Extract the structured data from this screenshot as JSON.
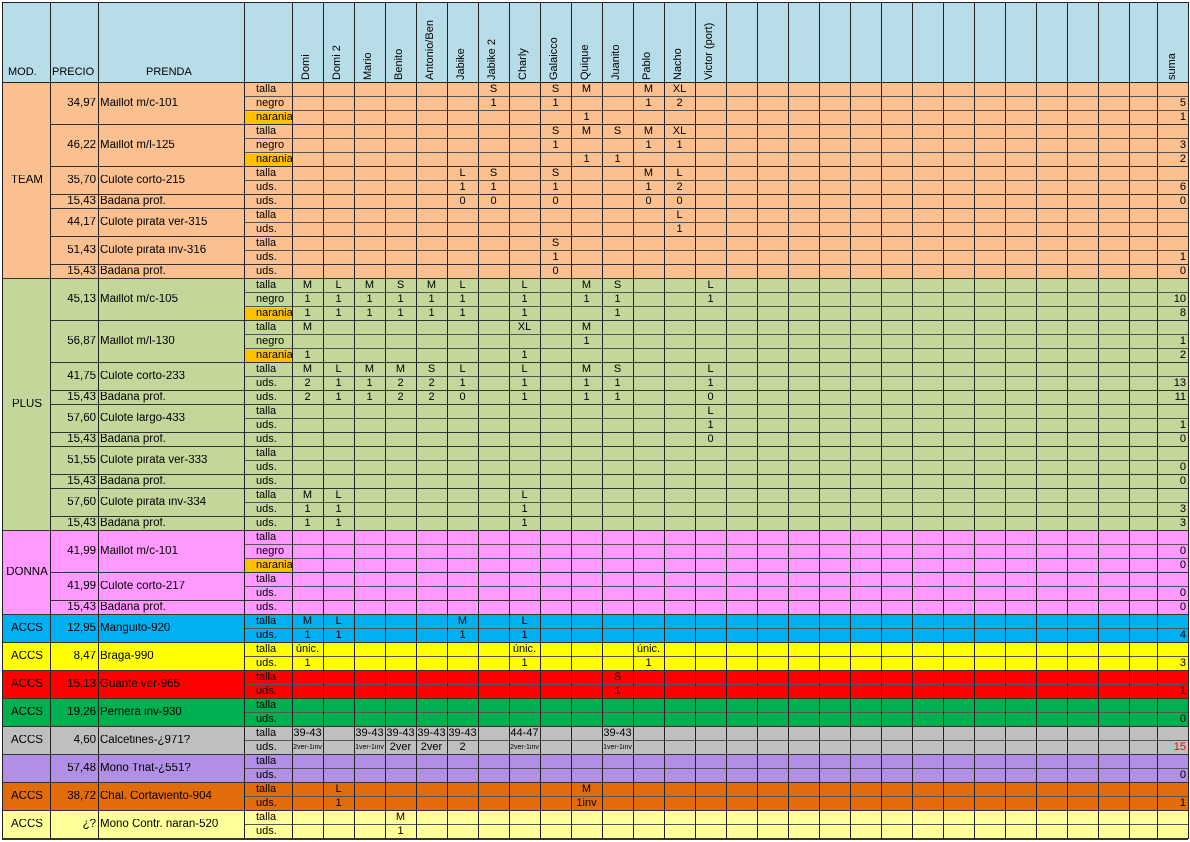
{
  "headers": {
    "mod": "MOD.",
    "precio": "PRECIO",
    "prenda": "PRENDA",
    "suma": "suma"
  },
  "people": [
    "Domi",
    "Domi 2",
    "Mario",
    "Benito",
    "Antonio/Ben",
    "Jabike",
    "Jabike 2",
    "Charly",
    "Galaicco",
    "Quique",
    "Juanito",
    "Pablo",
    "Nacho",
    "Victor (port)"
  ],
  "sections": [
    {
      "name": "TEAM",
      "color": "#fac090",
      "items": [
        {
          "price": "34,97",
          "name": "Maillot m/c-101",
          "rows": [
            {
              "label": "talla",
              "vals": {
                "6": "S",
                "8": "S",
                "9": "M",
                "11": "M",
                "12": "XL"
              },
              "sum": ""
            },
            {
              "label": "negro",
              "vals": {
                "6": "1",
                "8": "1",
                "11": "1",
                "12": "2"
              },
              "sum": "5"
            },
            {
              "label": "narania",
              "hl": true,
              "vals": {
                "9": "1"
              },
              "sum": "1"
            }
          ]
        },
        {
          "price": "46,22",
          "name": "Maillot m/l-125",
          "rows": [
            {
              "label": "talla",
              "vals": {
                "8": "S",
                "9": "M",
                "10": "S",
                "11": "M",
                "12": "XL"
              },
              "sum": ""
            },
            {
              "label": "negro",
              "vals": {
                "8": "1",
                "11": "1",
                "12": "1"
              },
              "sum": "3"
            },
            {
              "label": "narania",
              "hl": true,
              "vals": {
                "9": "1",
                "10": "1"
              },
              "sum": "2"
            }
          ]
        },
        {
          "price": "35,70",
          "name": "Culote corto-215",
          "rows": [
            {
              "label": "talla",
              "vals": {
                "5": "L",
                "6": "S",
                "8": "S",
                "11": "M",
                "12": "L"
              },
              "sum": ""
            },
            {
              "label": "uds.",
              "vals": {
                "5": "1",
                "6": "1",
                "8": "1",
                "11": "1",
                "12": "2"
              },
              "sum": "6"
            }
          ]
        },
        {
          "price": "15,43",
          "name": "Badana prof.",
          "rows": [
            {
              "label": "uds.",
              "vals": {
                "5": "0",
                "6": "0",
                "8": "0",
                "11": "0",
                "12": "0"
              },
              "sum": "0"
            }
          ]
        },
        {
          "price": "44,17",
          "name": "Culote pirata ver-315",
          "rows": [
            {
              "label": "talla",
              "vals": {
                "12": "L"
              },
              "sum": ""
            },
            {
              "label": "uds.",
              "vals": {
                "12": "1"
              },
              "sum": ""
            }
          ]
        },
        {
          "price": "51,43",
          "name": "Culote pirata inv-316",
          "rows": [
            {
              "label": "talla",
              "vals": {
                "8": "S"
              },
              "sum": ""
            },
            {
              "label": "uds.",
              "vals": {
                "8": "1"
              },
              "sum": "1"
            }
          ]
        },
        {
          "price": "15,43",
          "name": "Badana prof.",
          "rows": [
            {
              "label": "uds.",
              "vals": {
                "8": "0"
              },
              "sum": "0"
            }
          ]
        }
      ]
    },
    {
      "name": "PLUS",
      "color": "#c4d79b",
      "items": [
        {
          "price": "45,13",
          "name": "Maillot m/c-105",
          "rows": [
            {
              "label": "talla",
              "vals": {
                "0": "M",
                "1": "L",
                "2": "M",
                "3": "S",
                "4": "M",
                "5": "L",
                "7": "L",
                "9": "M",
                "10": "S",
                "13": "L"
              },
              "sum": ""
            },
            {
              "label": "negro",
              "vals": {
                "0": "1",
                "1": "1",
                "2": "1",
                "3": "1",
                "4": "1",
                "5": "1",
                "7": "1",
                "9": "1",
                "10": "1",
                "13": "1"
              },
              "sum": "10"
            },
            {
              "label": "narania",
              "hl": true,
              "vals": {
                "0": "1",
                "1": "1",
                "2": "1",
                "3": "1",
                "4": "1",
                "5": "1",
                "7": "1",
                "10": "1"
              },
              "sum": "8"
            }
          ]
        },
        {
          "price": "56,87",
          "name": "Maillot m/l-130",
          "rows": [
            {
              "label": "talla",
              "vals": {
                "0": "M",
                "7": "XL",
                "9": "M"
              },
              "sum": ""
            },
            {
              "label": "negro",
              "vals": {
                "9": "1"
              },
              "sum": "1"
            },
            {
              "label": "narania",
              "hl": true,
              "vals": {
                "0": "1",
                "7": "1"
              },
              "sum": "2"
            }
          ]
        },
        {
          "price": "41,75",
          "name": "Culote corto-233",
          "rows": [
            {
              "label": "talla",
              "vals": {
                "0": "M",
                "1": "L",
                "2": "M",
                "3": "M",
                "4": "S",
                "5": "L",
                "7": "L",
                "9": "M",
                "10": "S",
                "13": "L"
              },
              "sum": ""
            },
            {
              "label": "uds.",
              "vals": {
                "0": "2",
                "1": "1",
                "2": "1",
                "3": "2",
                "4": "2",
                "5": "1",
                "7": "1",
                "9": "1",
                "10": "1",
                "13": "1"
              },
              "sum": "13"
            }
          ]
        },
        {
          "price": "15,43",
          "name": "Badana prof.",
          "rows": [
            {
              "label": "uds.",
              "vals": {
                "0": "2",
                "1": "1",
                "2": "1",
                "3": "2",
                "4": "2",
                "5": "0",
                "7": "1",
                "9": "1",
                "10": "1",
                "13": "0"
              },
              "sum": "11"
            }
          ]
        },
        {
          "price": "57,60",
          "name": "Culote largo-433",
          "rows": [
            {
              "label": "talla",
              "vals": {
                "13": "L"
              },
              "sum": ""
            },
            {
              "label": "uds.",
              "vals": {
                "13": "1"
              },
              "sum": "1"
            }
          ]
        },
        {
          "price": "15,43",
          "name": "Badana prof.",
          "rows": [
            {
              "label": "uds.",
              "vals": {
                "13": "0"
              },
              "sum": "0"
            }
          ]
        },
        {
          "price": "51,55",
          "name": "Culote pirata ver-333",
          "rows": [
            {
              "label": "talla",
              "vals": {},
              "sum": ""
            },
            {
              "label": "uds.",
              "vals": {},
              "sum": "0"
            }
          ]
        },
        {
          "price": "15,43",
          "name": "Badana prof.",
          "rows": [
            {
              "label": "uds.",
              "vals": {},
              "sum": "0"
            }
          ]
        },
        {
          "price": "57,60",
          "name": "Culote pirata inv-334",
          "rows": [
            {
              "label": "talla",
              "vals": {
                "0": "M",
                "1": "L",
                "7": "L"
              },
              "sum": ""
            },
            {
              "label": "uds.",
              "vals": {
                "0": "1",
                "1": "1",
                "7": "1"
              },
              "sum": "3"
            }
          ]
        },
        {
          "price": "15,43",
          "name": "Badana prof.",
          "rows": [
            {
              "label": "uds.",
              "vals": {
                "0": "1",
                "1": "1",
                "7": "1"
              },
              "sum": "3"
            }
          ]
        }
      ]
    },
    {
      "name": "DONNA",
      "color": "#ff99ff",
      "items": [
        {
          "price": "41,99",
          "name": "Maillot m/c-101",
          "rows": [
            {
              "label": "talla",
              "vals": {},
              "sum": ""
            },
            {
              "label": "negro",
              "vals": {},
              "sum": "0"
            },
            {
              "label": "narania",
              "hl": true,
              "vals": {},
              "sum": "0"
            }
          ]
        },
        {
          "price": "41,99",
          "name": "Culote corto-217",
          "rows": [
            {
              "label": "talla",
              "vals": {},
              "sum": ""
            },
            {
              "label": "uds.",
              "vals": {},
              "sum": "0"
            }
          ]
        },
        {
          "price": "15,43",
          "name": "Badana prof.",
          "rows": [
            {
              "label": "uds.",
              "vals": {},
              "sum": "0"
            }
          ]
        }
      ]
    },
    {
      "name": "ACCS",
      "color": "#00b0f0",
      "items": [
        {
          "price": "12,95",
          "name": "Manguito-920",
          "rows": [
            {
              "label": "talla",
              "vals": {
                "0": "M",
                "1": "L",
                "5": "M",
                "7": "L"
              },
              "sum": ""
            },
            {
              "label": "uds.",
              "vals": {
                "0": "1",
                "1": "1",
                "5": "1",
                "7": "1"
              },
              "sum": "4"
            }
          ]
        }
      ]
    },
    {
      "name": "ACCS",
      "color": "#ffff00",
      "items": [
        {
          "price": "8,47",
          "name": "Braga-990",
          "rows": [
            {
              "label": "talla",
              "vals": {
                "0": "únic.",
                "7": "únic.",
                "11": "únic."
              },
              "sum": ""
            },
            {
              "label": "uds.",
              "vals": {
                "0": "1",
                "7": "1",
                "11": "1"
              },
              "sum": "3"
            }
          ]
        }
      ]
    },
    {
      "name": "ACCS",
      "color": "#ff0000",
      "items": [
        {
          "price": "15,13",
          "name": "Guante ver-965",
          "rows": [
            {
              "label": "talla",
              "vals": {
                "10": "S"
              },
              "sum": ""
            },
            {
              "label": "uds.",
              "vals": {
                "10": "1"
              },
              "sum": "1"
            }
          ]
        }
      ]
    },
    {
      "name": "ACCS",
      "color": "#00b050",
      "items": [
        {
          "price": "19,26",
          "name": "Pernera inv-930",
          "rows": [
            {
              "label": "talla",
              "vals": {},
              "sum": ""
            },
            {
              "label": "uds.",
              "vals": {},
              "sum": "0"
            }
          ]
        }
      ]
    },
    {
      "name": "ACCS",
      "color": "#bfbfbf",
      "items": [
        {
          "price": "4,60",
          "name": "Calcetines-¿971?",
          "rows": [
            {
              "label": "talla",
              "vals": {
                "0": "39-43",
                "2": "39-43",
                "3": "39-43",
                "4": "39-43",
                "5": "39-43",
                "7": "44-47",
                "10": "39-43"
              },
              "sum": ""
            },
            {
              "label": "uds.",
              "vals": {
                "0": "2ver-1inv",
                "2": "1ver-1inv",
                "3": "2ver",
                "4": "2ver",
                "5": "2",
                "7": "2ver-1inv",
                "10": "1ver-1inv"
              },
              "sum": "15",
              "sumRed": true
            }
          ]
        }
      ]
    },
    {
      "name": "",
      "color": "#b18fe6",
      "items": [
        {
          "price": "57,48",
          "name": "Mono Triat-¿551?",
          "rows": [
            {
              "label": "talla",
              "vals": {},
              "sum": ""
            },
            {
              "label": "uds.",
              "vals": {},
              "sum": "0"
            }
          ]
        }
      ]
    },
    {
      "name": "ACCS",
      "color": "#e36c0a",
      "items": [
        {
          "price": "38,72",
          "name": "Chal. Cortaviento-904",
          "rows": [
            {
              "label": "talla",
              "vals": {
                "1": "L",
                "9": "M"
              },
              "sum": ""
            },
            {
              "label": "uds.",
              "vals": {
                "1": "1",
                "9": "1inv"
              },
              "sum": "1"
            }
          ]
        }
      ]
    },
    {
      "name": "ACCS",
      "color": "#ffff99",
      "items": [
        {
          "price": "¿?",
          "name": "Mono Contr. naran-520",
          "rows": [
            {
              "label": "talla",
              "vals": {
                "3": "M"
              },
              "sum": ""
            },
            {
              "label": "uds.",
              "vals": {
                "3": "1"
              },
              "sum": ""
            }
          ]
        }
      ]
    }
  ]
}
